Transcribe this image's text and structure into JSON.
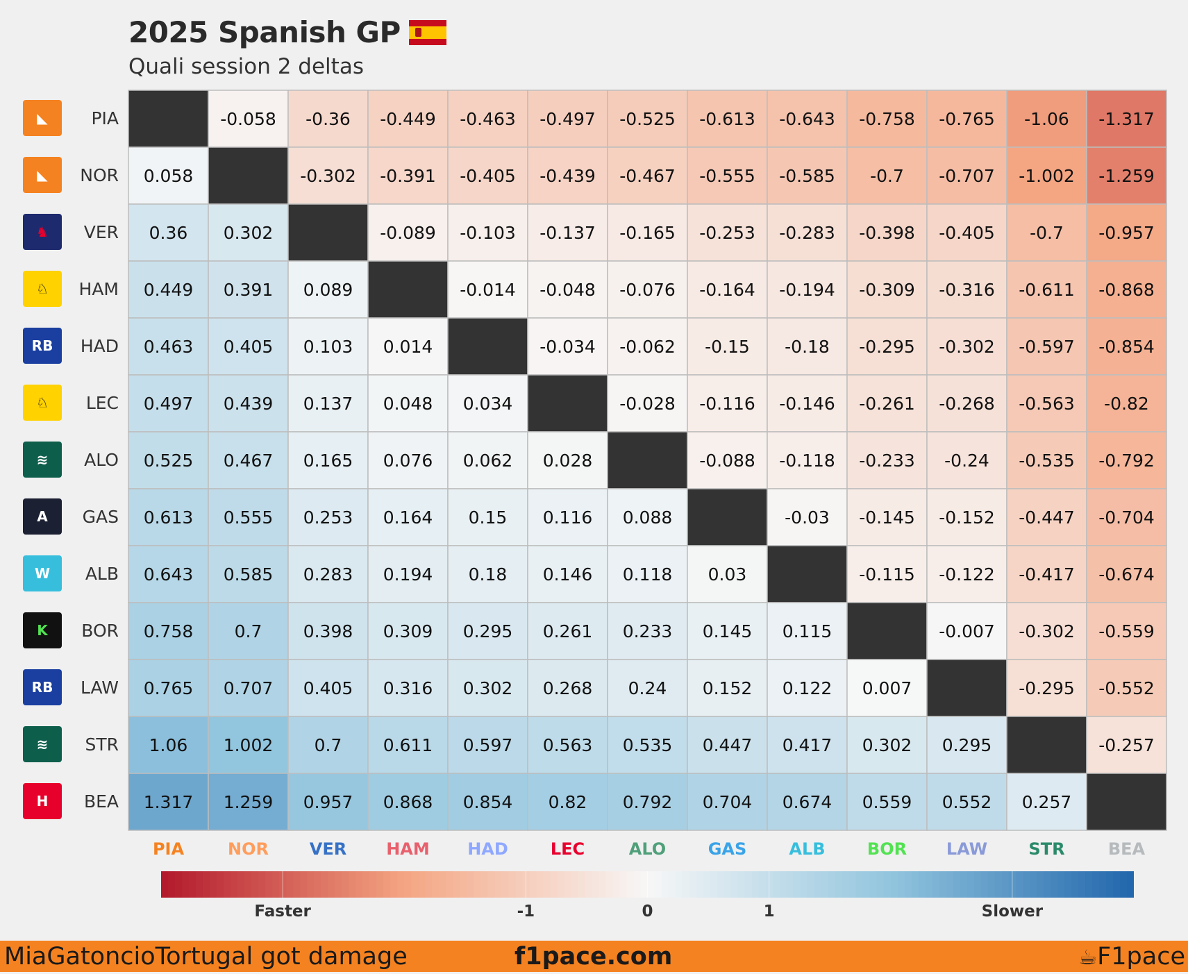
{
  "title": "2025 Spanish GP",
  "subtitle": "Quali session 2 deltas",
  "chart_data": {
    "type": "heatmap",
    "drivers": [
      "PIA",
      "NOR",
      "VER",
      "HAM",
      "HAD",
      "LEC",
      "ALO",
      "GAS",
      "ALB",
      "BOR",
      "LAW",
      "STR",
      "BEA"
    ],
    "driver_colors": [
      "#f58220",
      "#ff9d5c",
      "#3671c6",
      "#e8606d",
      "#8fa8ff",
      "#e8002d",
      "#4fa07a",
      "#3aa3e8",
      "#37bedd",
      "#52e252",
      "#8a9ad8",
      "#2a8a6a",
      "#b6babd"
    ],
    "logos": [
      "mclaren-icon",
      "mclaren-icon",
      "redbull-icon",
      "ferrari-icon",
      "racingbulls-icon",
      "ferrari-icon",
      "astonmartin-icon",
      "alpine-icon",
      "williams-icon",
      "sauber-icon",
      "racingbulls-icon",
      "astonmartin-icon",
      "haas-icon"
    ],
    "values": [
      [
        null,
        "-0.058",
        "-0.36",
        "-0.449",
        "-0.463",
        "-0.497",
        "-0.525",
        "-0.613",
        "-0.643",
        "-0.758",
        "-0.765",
        "-1.06",
        "-1.317"
      ],
      [
        "0.058",
        null,
        "-0.302",
        "-0.391",
        "-0.405",
        "-0.439",
        "-0.467",
        "-0.555",
        "-0.585",
        "-0.7",
        "-0.707",
        "-1.002",
        "-1.259"
      ],
      [
        "0.36",
        "0.302",
        null,
        "-0.089",
        "-0.103",
        "-0.137",
        "-0.165",
        "-0.253",
        "-0.283",
        "-0.398",
        "-0.405",
        "-0.7",
        "-0.957"
      ],
      [
        "0.449",
        "0.391",
        "0.089",
        null,
        "-0.014",
        "-0.048",
        "-0.076",
        "-0.164",
        "-0.194",
        "-0.309",
        "-0.316",
        "-0.611",
        "-0.868"
      ],
      [
        "0.463",
        "0.405",
        "0.103",
        "0.014",
        null,
        "-0.034",
        "-0.062",
        "-0.15",
        "-0.18",
        "-0.295",
        "-0.302",
        "-0.597",
        "-0.854"
      ],
      [
        "0.497",
        "0.439",
        "0.137",
        "0.048",
        "0.034",
        null,
        "-0.028",
        "-0.116",
        "-0.146",
        "-0.261",
        "-0.268",
        "-0.563",
        "-0.82"
      ],
      [
        "0.525",
        "0.467",
        "0.165",
        "0.076",
        "0.062",
        "0.028",
        null,
        "-0.088",
        "-0.118",
        "-0.233",
        "-0.24",
        "-0.535",
        "-0.792"
      ],
      [
        "0.613",
        "0.555",
        "0.253",
        "0.164",
        "0.15",
        "0.116",
        "0.088",
        null,
        "-0.03",
        "-0.145",
        "-0.152",
        "-0.447",
        "-0.704"
      ],
      [
        "0.643",
        "0.585",
        "0.283",
        "0.194",
        "0.18",
        "0.146",
        "0.118",
        "0.03",
        null,
        "-0.115",
        "-0.122",
        "-0.417",
        "-0.674"
      ],
      [
        "0.758",
        "0.7",
        "0.398",
        "0.309",
        "0.295",
        "0.261",
        "0.233",
        "0.145",
        "0.115",
        null,
        "-0.007",
        "-0.302",
        "-0.559"
      ],
      [
        "0.765",
        "0.707",
        "0.405",
        "0.316",
        "0.302",
        "0.268",
        "0.24",
        "0.152",
        "0.122",
        "0.007",
        null,
        "-0.295",
        "-0.552"
      ],
      [
        "1.06",
        "1.002",
        "0.7",
        "0.611",
        "0.597",
        "0.563",
        "0.535",
        "0.447",
        "0.417",
        "0.302",
        "0.295",
        null,
        "-0.257"
      ],
      [
        "1.317",
        "1.259",
        "0.957",
        "0.868",
        "0.854",
        "0.82",
        "0.792",
        "0.704",
        "0.674",
        "0.559",
        "0.552",
        "0.257",
        null
      ]
    ],
    "color_range": [
      -2,
      2
    ],
    "colorbar_ticks": [
      "Faster",
      "-1",
      "0",
      "1",
      "Slower"
    ],
    "diagonal_color": "#333333",
    "negative_color": "#b2182b",
    "positive_color": "#2166ac",
    "neutral_color": "#f7f7f7"
  },
  "footer": {
    "left": "MiaGatoncioTortugal got damage",
    "center": "f1pace.com",
    "right": "F1pace"
  }
}
